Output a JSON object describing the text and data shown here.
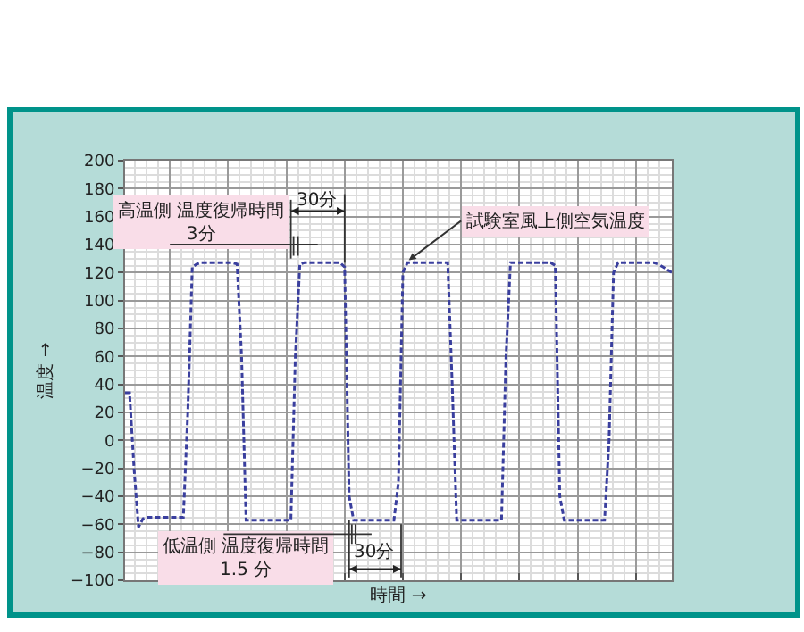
{
  "chart_data": {
    "type": "line",
    "xlabel": "時間 →",
    "ylabel": "温度 →",
    "categories": [
      null,
      null,
      null,
      null,
      null,
      null,
      null,
      null,
      null,
      null,
      null,
      null,
      null,
      null,
      null,
      null,
      null,
      null,
      null,
      null,
      null,
      null,
      null,
      null,
      null,
      null,
      null,
      null,
      null,
      null,
      null,
      null,
      null,
      null,
      null,
      null,
      null,
      null,
      null,
      null,
      null,
      null,
      null,
      null,
      null,
      null,
      null,
      null,
      null,
      null,
      null,
      null,
      null,
      null,
      null,
      null,
      null,
      null,
      null,
      null,
      null,
      null,
      null,
      null,
      null,
      null,
      null,
      null,
      null,
      null,
      null,
      null,
      null,
      null,
      null,
      null,
      null,
      null,
      null,
      null,
      null,
      null,
      null,
      null,
      null,
      null,
      null,
      null,
      null,
      null,
      null,
      null,
      null,
      null,
      null,
      null,
      null,
      null,
      null,
      null,
      null,
      null,
      null,
      null,
      null,
      null,
      null,
      null,
      null,
      null,
      null,
      null,
      null,
      null,
      null,
      null,
      null,
      null,
      null,
      null,
      null,
      null,
      null
    ],
    "series": [
      {
        "color": "#3a3f9e",
        "values": [
          34,
          34,
          -20,
          -62,
          -56,
          -55,
          -55,
          -55,
          -55,
          -55,
          -55,
          -55,
          -55,
          -55,
          20,
          124,
          126,
          127,
          127,
          127,
          127,
          127,
          127,
          127,
          127,
          126,
          60,
          -57,
          -57,
          -57,
          -57,
          -57,
          -57,
          -57,
          -57,
          -57,
          -57,
          -57,
          60,
          126,
          127,
          127,
          127,
          127,
          127,
          127,
          127,
          127,
          127,
          124,
          -40,
          -57,
          -57,
          -57,
          -57,
          -57,
          -57,
          -57,
          -57,
          -57,
          -57,
          -30,
          120,
          127,
          127,
          127,
          127,
          127,
          127,
          127,
          127,
          127,
          127,
          40,
          -57,
          -57,
          -57,
          -57,
          -57,
          -57,
          -57,
          -57,
          -57,
          -57,
          -57,
          60,
          127,
          127,
          127,
          127,
          127,
          127,
          127,
          127,
          127,
          127,
          125,
          -40,
          -57,
          -57,
          -57,
          -57,
          -57,
          -57,
          -57,
          -57,
          -57,
          -57,
          0,
          120,
          127,
          127,
          127,
          127,
          127,
          127,
          127,
          127,
          127,
          126,
          124,
          122,
          120
        ]
      }
    ],
    "ylim": [
      -100,
      200
    ],
    "yticks": [
      -100,
      -80,
      -60,
      -40,
      -20,
      0,
      20,
      40,
      60,
      80,
      100,
      120,
      140,
      160,
      180,
      200
    ],
    "grid": true,
    "line_style": "dashed",
    "marker": "none",
    "annotations": [
      "高温側 温度復帰時間\n3分",
      "30分",
      "試験室風上側空気温度",
      "低温側 温度復帰時間\n1.5 分",
      "30分"
    ]
  }
}
